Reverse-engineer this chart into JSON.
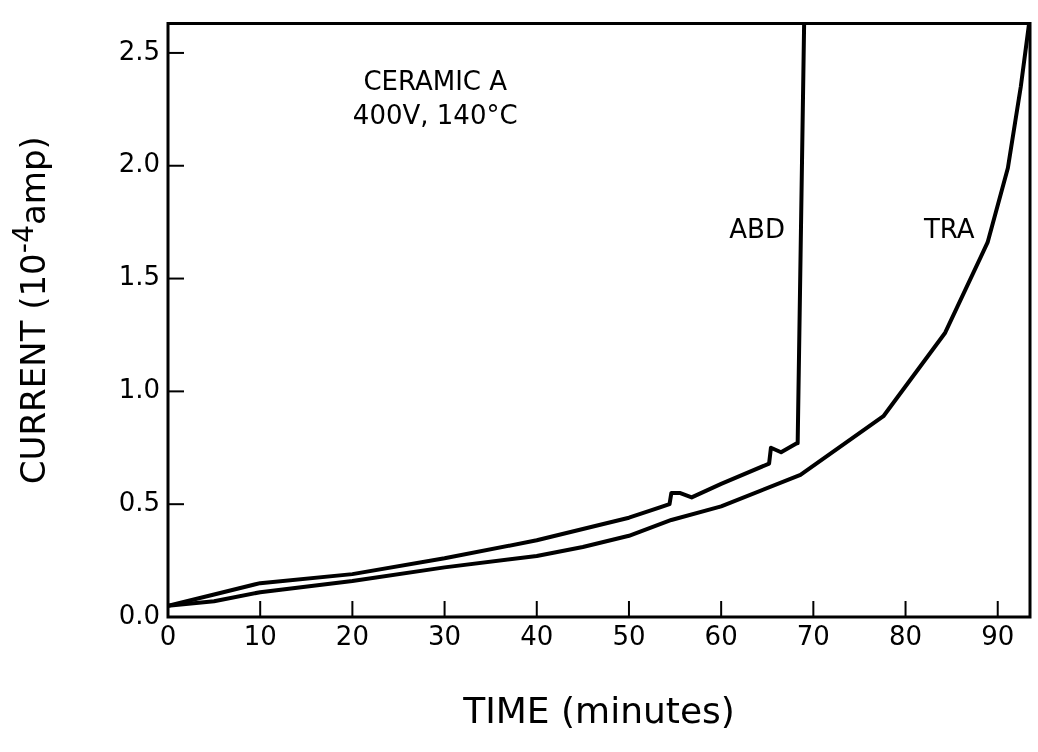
{
  "chart_data": {
    "type": "line",
    "xlabel": "TIME (minutes)",
    "ylabel": "CURRENT (10$^{-4}$amp)",
    "annotations": [
      "CERAMIC A",
      "400V, 140°C"
    ],
    "xlim": [
      0,
      93.5
    ],
    "xticks": [
      0,
      10,
      20,
      30,
      40,
      50,
      60,
      70,
      80,
      90
    ],
    "ylim": [
      0,
      2.63
    ],
    "yticks": [
      {
        "value": 0,
        "label": "0.0"
      },
      {
        "value": 0.5,
        "label": "0.5"
      },
      {
        "value": 1,
        "label": "1.0"
      },
      {
        "value": 1.5,
        "label": "1.5"
      },
      {
        "value": 2,
        "label": "2.0"
      },
      {
        "value": 2.5,
        "label": "2.5"
      }
    ],
    "grid": false,
    "legend": false,
    "marker": "none",
    "line_style": "solid",
    "series": [
      {
        "name": "ABD",
        "color": "#000000",
        "x": [
          0,
          5,
          10,
          20,
          30,
          40,
          45,
          50,
          54.4,
          54.6,
          55.5,
          56.8,
          60,
          65.2,
          65.4,
          66.5,
          68.2,
          68.3,
          69
        ],
        "values": [
          0.05,
          0.1,
          0.15,
          0.19,
          0.26,
          0.34,
          0.39,
          0.44,
          0.5,
          0.55,
          0.55,
          0.53,
          0.59,
          0.68,
          0.75,
          0.73,
          0.77,
          0.77,
          2.63
        ]
      },
      {
        "name": "TRA",
        "color": "#000000",
        "x": [
          0,
          5,
          10,
          20,
          30,
          40,
          45,
          50,
          54.6,
          60,
          68.6,
          77.6,
          84.3,
          88.9,
          91.1,
          92.5,
          93.4
        ],
        "values": [
          0.05,
          0.07,
          0.11,
          0.16,
          0.22,
          0.27,
          0.31,
          0.36,
          0.43,
          0.49,
          0.63,
          0.89,
          1.26,
          1.66,
          1.99,
          2.35,
          2.63
        ]
      }
    ]
  }
}
